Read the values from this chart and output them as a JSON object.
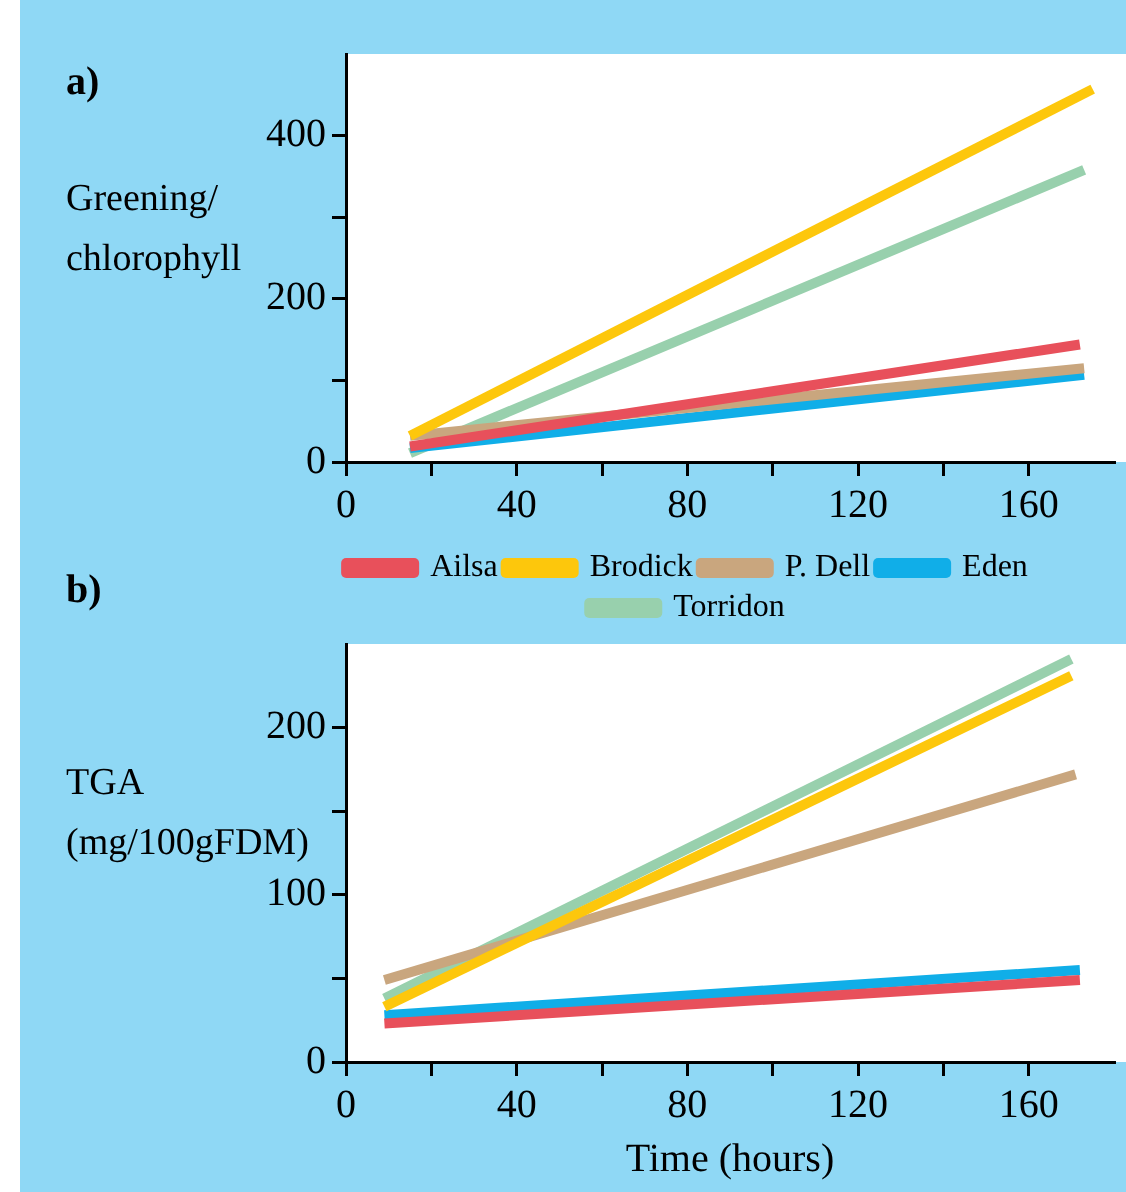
{
  "chart_data": [
    {
      "type": "line",
      "title": "a)",
      "ylabel": "Greening/\nchlorophyll",
      "xlim": [
        0,
        180
      ],
      "ylim": [
        0,
        500
      ],
      "xticks": [
        0,
        {
          "value": 20,
          "label": null
        },
        40,
        {
          "value": 60,
          "label": null
        },
        80,
        {
          "value": 100,
          "label": null
        },
        120,
        {
          "value": 140,
          "label": null
        },
        160
      ],
      "yticks": [
        0,
        {
          "value": 100,
          "label": null
        },
        200,
        {
          "value": 300,
          "label": null
        },
        400
      ],
      "grid": false,
      "legend": false,
      "series": [
        {
          "color": "#e8505b",
          "x": [
            15,
            172
          ],
          "values": [
            19,
            144
          ]
        },
        {
          "color": "#fdc70c",
          "x": [
            15,
            175
          ],
          "values": [
            32,
            457
          ]
        },
        {
          "color": "#c9a67e",
          "x": [
            15,
            173
          ],
          "values": [
            32,
            115
          ]
        },
        {
          "color": "#10aee8",
          "x": [
            15,
            173
          ],
          "values": [
            17,
            107
          ]
        },
        {
          "color": "#98d0ad",
          "x": [
            15,
            173
          ],
          "values": [
            11,
            358
          ]
        }
      ]
    },
    {
      "type": "line",
      "title": "b)",
      "xlabel": "Time (hours)",
      "ylabel": "TGA\n(mg/100gFDM)",
      "xlim": [
        0,
        180
      ],
      "ylim": [
        0,
        250
      ],
      "xticks": [
        0,
        {
          "value": 20,
          "label": null
        },
        40,
        {
          "value": 60,
          "label": null
        },
        80,
        {
          "value": 100,
          "label": null
        },
        120,
        {
          "value": 140,
          "label": null
        },
        160
      ],
      "yticks": [
        0,
        {
          "value": 50,
          "label": null
        },
        100,
        {
          "value": 150,
          "label": null
        },
        200
      ],
      "grid": false,
      "legend": "top",
      "series": [
        {
          "name": "Ailsa",
          "color": "#e8505b",
          "x": [
            9,
            172
          ],
          "values": [
            23,
            49
          ]
        },
        {
          "name": "Brodick",
          "color": "#fdc70c",
          "x": [
            9,
            170
          ],
          "values": [
            33,
            231
          ]
        },
        {
          "name": "P. Dell",
          "color": "#c9a67e",
          "x": [
            9,
            171
          ],
          "values": [
            49,
            172
          ]
        },
        {
          "name": "Eden",
          "color": "#10aee8",
          "x": [
            9,
            172
          ],
          "values": [
            28,
            55
          ]
        },
        {
          "name": "Torridon",
          "color": "#98d0ad",
          "x": [
            9,
            170
          ],
          "values": [
            38,
            241
          ]
        }
      ]
    }
  ]
}
